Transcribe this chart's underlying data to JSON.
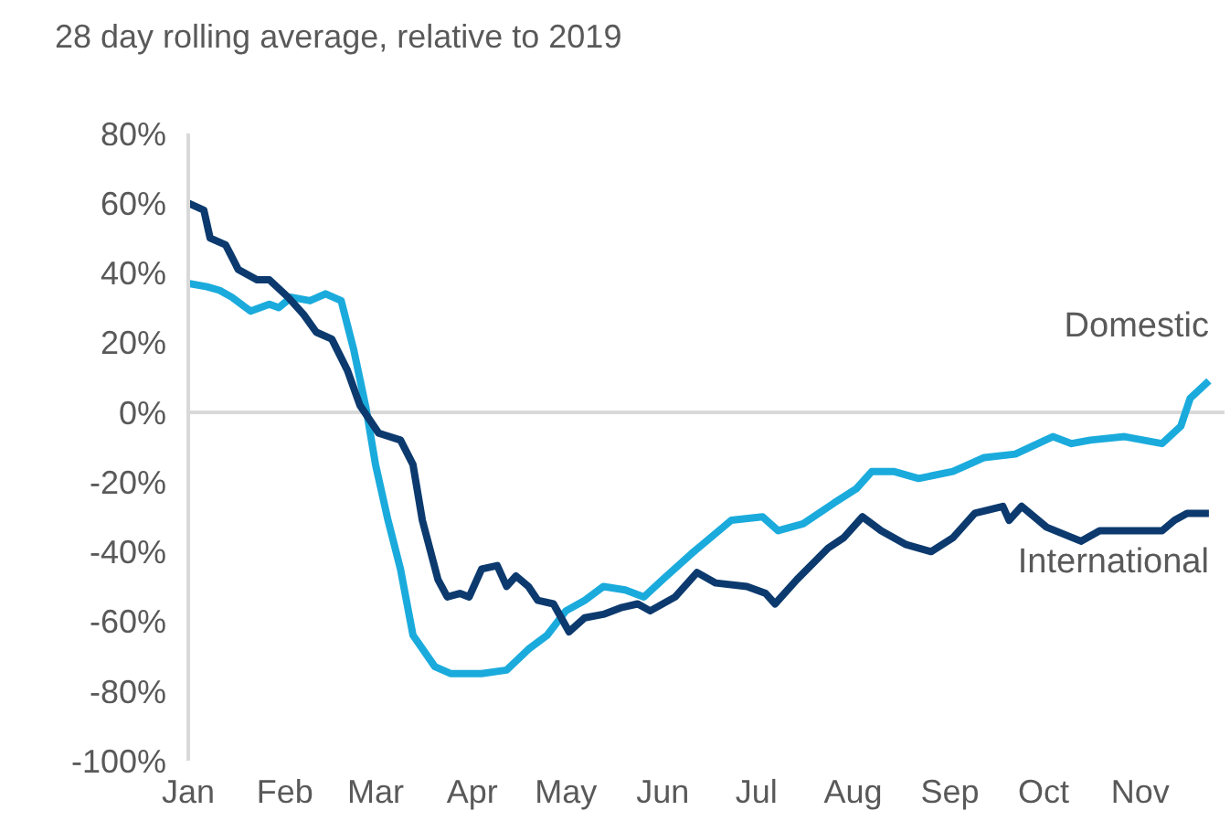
{
  "chart_data": {
    "type": "line",
    "title": "28 day rolling average, relative to 2019",
    "xlim": [
      "--01-01",
      "--11-28"
    ],
    "xticks": [
      {
        "value": "--01-01",
        "label": "Jan"
      },
      {
        "value": "--02-01",
        "label": "Feb"
      },
      {
        "value": "--03-01",
        "label": "Mar"
      },
      {
        "value": "--04-01",
        "label": "Apr"
      },
      {
        "value": "--05-01",
        "label": "May"
      },
      {
        "value": "--06-01",
        "label": "Jun"
      },
      {
        "value": "--07-01",
        "label": "Jul"
      },
      {
        "value": "--08-01",
        "label": "Aug"
      },
      {
        "value": "--09-01",
        "label": "Sep"
      },
      {
        "value": "--10-01",
        "label": "Oct"
      },
      {
        "value": "--11-01",
        "label": "Nov"
      }
    ],
    "ylim": [
      -100,
      80
    ],
    "yticks": [
      {
        "value": -100,
        "label": "-100%"
      },
      {
        "value": -80,
        "label": "-80%"
      },
      {
        "value": -60,
        "label": "-60%"
      },
      {
        "value": -40,
        "label": "-40%"
      },
      {
        "value": -20,
        "label": "-20%"
      },
      {
        "value": 0,
        "label": "0%"
      },
      {
        "value": 20,
        "label": "20%"
      },
      {
        "value": 40,
        "label": "40%"
      },
      {
        "value": 60,
        "label": "60%"
      },
      {
        "value": 80,
        "label": "80%"
      }
    ],
    "ref_lines": [
      {
        "axis": "y",
        "value": 0,
        "color": "#d9d9d9"
      }
    ],
    "grid": false,
    "legend": false,
    "series": [
      {
        "name": "Domestic",
        "color": "#1aabdc",
        "x": [
          "--01-01",
          "--01-07",
          "--01-11",
          "--01-15",
          "--01-21",
          "--01-27",
          "--01-30",
          "--02-03",
          "--02-09",
          "--02-14",
          "--02-19",
          "--02-23",
          "--02-27",
          "--03-01",
          "--03-05",
          "--03-09",
          "--03-13",
          "--03-20",
          "--03-25",
          "--04-04",
          "--04-12",
          "--04-19",
          "--04-25",
          "--05-01",
          "--05-07",
          "--05-13",
          "--05-20",
          "--05-26",
          "--06-01",
          "--06-11",
          "--06-23",
          "--07-03",
          "--07-08",
          "--07-16",
          "--07-26",
          "--08-02",
          "--08-07",
          "--08-14",
          "--08-22",
          "--09-02",
          "--09-12",
          "--09-22",
          "--10-04",
          "--10-10",
          "--10-16",
          "--10-27",
          "--11-08",
          "--11-14",
          "--11-17",
          "--11-23"
        ],
        "values": [
          37,
          36,
          35,
          33,
          29,
          31,
          30,
          33,
          32,
          34,
          32,
          18,
          1,
          -15,
          -31,
          -45,
          -64,
          -73,
          -75,
          -75,
          -74,
          -68,
          -64,
          -57,
          -54,
          -50,
          -51,
          -53,
          -48,
          -40,
          -31,
          -30,
          -34,
          -32,
          -26,
          -22,
          -17,
          -17,
          -19,
          -17,
          -13,
          -12,
          -7,
          -9,
          -8,
          -7,
          -9,
          -4,
          4,
          9
        ]
      },
      {
        "name": "International",
        "color": "#0c3a6e",
        "x": [
          "--01-01",
          "--01-06",
          "--01-08",
          "--01-13",
          "--01-17",
          "--01-23",
          "--01-27",
          "--02-02",
          "--02-07",
          "--02-11",
          "--02-16",
          "--02-21",
          "--02-25",
          "--03-02",
          "--03-09",
          "--03-13",
          "--03-16",
          "--03-21",
          "--03-24",
          "--03-28",
          "--03-31",
          "--04-04",
          "--04-09",
          "--04-12",
          "--04-15",
          "--04-19",
          "--04-22",
          "--04-27",
          "--05-02",
          "--05-07",
          "--05-13",
          "--05-19",
          "--05-24",
          "--05-28",
          "--06-05",
          "--06-12",
          "--06-18",
          "--06-28",
          "--07-04",
          "--07-07",
          "--07-14",
          "--07-24",
          "--07-29",
          "--08-04",
          "--08-10",
          "--08-18",
          "--08-26",
          "--09-02",
          "--09-09",
          "--09-18",
          "--09-20",
          "--09-24",
          "--10-02",
          "--10-13",
          "--10-19",
          "--11-08",
          "--11-12",
          "--11-16",
          "--11-23"
        ],
        "values": [
          60,
          58,
          50,
          48,
          41,
          38,
          38,
          33,
          28,
          23,
          21,
          12,
          2,
          -6,
          -8,
          -15,
          -31,
          -48,
          -53,
          -52,
          -53,
          -45,
          -44,
          -50,
          -47,
          -50,
          -54,
          -55,
          -63,
          -59,
          -58,
          -56,
          -55,
          -57,
          -53,
          -46,
          -49,
          -50,
          -52,
          -55,
          -48,
          -39,
          -36,
          -30,
          -34,
          -38,
          -40,
          -36,
          -29,
          -27,
          -31,
          -27,
          -33,
          -37,
          -34,
          -34,
          -31,
          -29,
          -29
        ]
      }
    ]
  }
}
